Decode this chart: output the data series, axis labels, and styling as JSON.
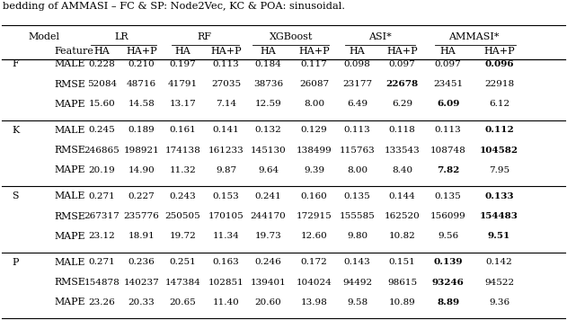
{
  "title_line": "bedding of AMMASI – FC & SP: Node2Vec, KC & POA: sinusoidal.",
  "col_groups": [
    "LR",
    "RF",
    "XGBoost",
    "ASI*",
    "AMMASI*"
  ],
  "sections": [
    {
      "label": "F",
      "rows": [
        {
          "metric": "MALE",
          "values": [
            "0.228",
            "0.210",
            "0.197",
            "0.113",
            "0.184",
            "0.117",
            "0.098",
            "0.097",
            "0.097",
            "0.096"
          ],
          "bold": [
            false,
            false,
            false,
            false,
            false,
            false,
            false,
            false,
            false,
            true
          ]
        },
        {
          "metric": "RMSE",
          "values": [
            "52084",
            "48716",
            "41791",
            "27035",
            "38736",
            "26087",
            "23177",
            "22678",
            "23451",
            "22918"
          ],
          "bold": [
            false,
            false,
            false,
            false,
            false,
            false,
            false,
            true,
            false,
            false
          ]
        },
        {
          "metric": "MAPE",
          "values": [
            "15.60",
            "14.58",
            "13.17",
            "7.14",
            "12.59",
            "8.00",
            "6.49",
            "6.29",
            "6.09",
            "6.12"
          ],
          "bold": [
            false,
            false,
            false,
            false,
            false,
            false,
            false,
            false,
            true,
            false
          ]
        }
      ]
    },
    {
      "label": "K",
      "rows": [
        {
          "metric": "MALE",
          "values": [
            "0.245",
            "0.189",
            "0.161",
            "0.141",
            "0.132",
            "0.129",
            "0.113",
            "0.118",
            "0.113",
            "0.112"
          ],
          "bold": [
            false,
            false,
            false,
            false,
            false,
            false,
            false,
            false,
            false,
            true
          ]
        },
        {
          "metric": "RMSE",
          "values": [
            "246865",
            "198921",
            "174138",
            "161233",
            "145130",
            "138499",
            "115763",
            "133543",
            "108748",
            "104582"
          ],
          "bold": [
            false,
            false,
            false,
            false,
            false,
            false,
            false,
            false,
            false,
            true
          ]
        },
        {
          "metric": "MAPE",
          "values": [
            "20.19",
            "14.90",
            "11.32",
            "9.87",
            "9.64",
            "9.39",
            "8.00",
            "8.40",
            "7.82",
            "7.95"
          ],
          "bold": [
            false,
            false,
            false,
            false,
            false,
            false,
            false,
            false,
            true,
            false
          ]
        }
      ]
    },
    {
      "label": "S",
      "rows": [
        {
          "metric": "MALE",
          "values": [
            "0.271",
            "0.227",
            "0.243",
            "0.153",
            "0.241",
            "0.160",
            "0.135",
            "0.144",
            "0.135",
            "0.133"
          ],
          "bold": [
            false,
            false,
            false,
            false,
            false,
            false,
            false,
            false,
            false,
            true
          ]
        },
        {
          "metric": "RMSE",
          "values": [
            "267317",
            "235776",
            "250505",
            "170105",
            "244170",
            "172915",
            "155585",
            "162520",
            "156099",
            "154483"
          ],
          "bold": [
            false,
            false,
            false,
            false,
            false,
            false,
            false,
            false,
            false,
            true
          ]
        },
        {
          "metric": "MAPE",
          "values": [
            "23.12",
            "18.91",
            "19.72",
            "11.34",
            "19.73",
            "12.60",
            "9.80",
            "10.82",
            "9.56",
            "9.51"
          ],
          "bold": [
            false,
            false,
            false,
            false,
            false,
            false,
            false,
            false,
            false,
            true
          ]
        }
      ]
    },
    {
      "label": "P",
      "rows": [
        {
          "metric": "MALE",
          "values": [
            "0.271",
            "0.236",
            "0.251",
            "0.163",
            "0.246",
            "0.172",
            "0.143",
            "0.151",
            "0.139",
            "0.142"
          ],
          "bold": [
            false,
            false,
            false,
            false,
            false,
            false,
            false,
            false,
            true,
            false
          ]
        },
        {
          "metric": "RMSE",
          "values": [
            "154878",
            "140237",
            "147384",
            "102851",
            "139401",
            "104024",
            "94492",
            "98615",
            "93246",
            "94522"
          ],
          "bold": [
            false,
            false,
            false,
            false,
            false,
            false,
            false,
            false,
            true,
            false
          ]
        },
        {
          "metric": "MAPE",
          "values": [
            "23.26",
            "20.33",
            "20.65",
            "11.40",
            "20.60",
            "13.98",
            "9.58",
            "10.89",
            "8.89",
            "9.36"
          ],
          "bold": [
            false,
            false,
            false,
            false,
            false,
            false,
            false,
            false,
            true,
            false
          ]
        }
      ]
    }
  ]
}
